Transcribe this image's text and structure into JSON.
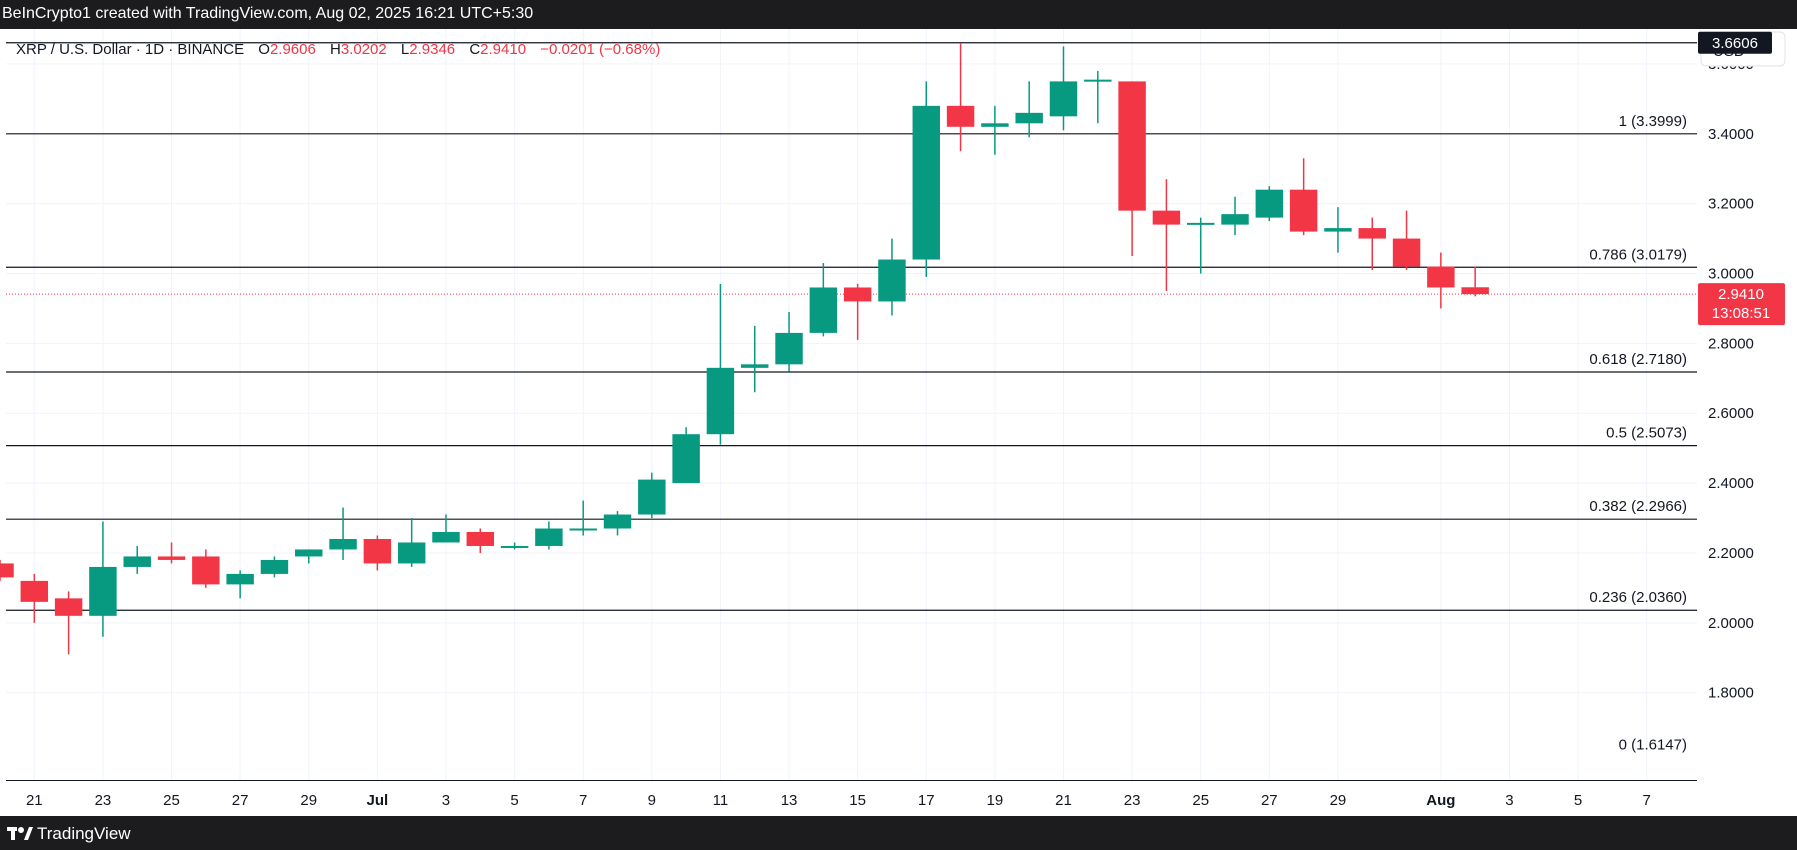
{
  "header": {
    "credit": "BeInCrypto1 created with TradingView.com, Aug 02, 2025 16:21 UTC+5:30"
  },
  "symbol": {
    "name": "XRP / U.S. Dollar · 1D · BINANCE",
    "open_label": "O",
    "open": "2.9606",
    "high_label": "H",
    "high": "3.0202",
    "low_label": "L",
    "low": "2.9346",
    "close_label": "C",
    "close": "2.9410",
    "change": "−0.0201 (−0.68%)"
  },
  "currency_button": "USD",
  "price_tag": {
    "price": "2.9410",
    "countdown": "13:08:51"
  },
  "high_tag": "3.6606",
  "footer": {
    "brand": "TradingView"
  },
  "colors": {
    "up": "#089981",
    "down": "#f23645",
    "text": "#131722",
    "grid": "#f0f3fa",
    "level_line": "#131722"
  },
  "chart_data": {
    "type": "candlestick",
    "ylim": [
      1.55,
      3.7
    ],
    "yticks": [
      "1.8000",
      "2.0000",
      "2.2000",
      "2.4000",
      "2.6000",
      "2.8000",
      "3.0000",
      "3.2000",
      "3.4000",
      "3.6000"
    ],
    "x_dates": [
      "2025-06-20",
      "2025-08-08"
    ],
    "xticks": [
      {
        "date": "2025-06-21",
        "label": "21"
      },
      {
        "date": "2025-06-23",
        "label": "23"
      },
      {
        "date": "2025-06-25",
        "label": "25"
      },
      {
        "date": "2025-06-27",
        "label": "27"
      },
      {
        "date": "2025-06-29",
        "label": "29"
      },
      {
        "date": "2025-07-01",
        "label": "Jul"
      },
      {
        "date": "2025-07-03",
        "label": "3"
      },
      {
        "date": "2025-07-05",
        "label": "5"
      },
      {
        "date": "2025-07-07",
        "label": "7"
      },
      {
        "date": "2025-07-09",
        "label": "9"
      },
      {
        "date": "2025-07-11",
        "label": "11"
      },
      {
        "date": "2025-07-13",
        "label": "13"
      },
      {
        "date": "2025-07-15",
        "label": "15"
      },
      {
        "date": "2025-07-17",
        "label": "17"
      },
      {
        "date": "2025-07-19",
        "label": "19"
      },
      {
        "date": "2025-07-21",
        "label": "21"
      },
      {
        "date": "2025-07-23",
        "label": "23"
      },
      {
        "date": "2025-07-25",
        "label": "25"
      },
      {
        "date": "2025-07-27",
        "label": "27"
      },
      {
        "date": "2025-07-29",
        "label": "29"
      },
      {
        "date": "2025-08-01",
        "label": "Aug"
      },
      {
        "date": "2025-08-03",
        "label": "3"
      },
      {
        "date": "2025-08-05",
        "label": "5"
      },
      {
        "date": "2025-08-07",
        "label": "7"
      }
    ],
    "fib_levels": [
      {
        "label": "1 (3.3999)",
        "value": 3.3999
      },
      {
        "label": "0.786 (3.0179)",
        "value": 3.0179
      },
      {
        "label": "0.618 (2.7180)",
        "value": 2.718
      },
      {
        "label": "0.5 (2.5073)",
        "value": 2.5073
      },
      {
        "label": "0.382 (2.2966)",
        "value": 2.2966
      },
      {
        "label": "0.236 (2.0360)",
        "value": 2.036
      },
      {
        "label": "0 (1.6147)",
        "value": 1.6147
      }
    ],
    "top_line": 3.6606,
    "last_price": 2.941,
    "candles": [
      {
        "date": "2025-06-20",
        "o": 2.17,
        "h": 2.18,
        "l": 2.12,
        "c": 2.13
      },
      {
        "date": "2025-06-21",
        "o": 2.12,
        "h": 2.14,
        "l": 2.0,
        "c": 2.06
      },
      {
        "date": "2025-06-22",
        "o": 2.07,
        "h": 2.09,
        "l": 1.91,
        "c": 2.02
      },
      {
        "date": "2025-06-23",
        "o": 2.02,
        "h": 2.29,
        "l": 1.96,
        "c": 2.16
      },
      {
        "date": "2025-06-24",
        "o": 2.16,
        "h": 2.22,
        "l": 2.14,
        "c": 2.19
      },
      {
        "date": "2025-06-25",
        "o": 2.19,
        "h": 2.23,
        "l": 2.17,
        "c": 2.18
      },
      {
        "date": "2025-06-26",
        "o": 2.19,
        "h": 2.21,
        "l": 2.1,
        "c": 2.11
      },
      {
        "date": "2025-06-27",
        "o": 2.11,
        "h": 2.15,
        "l": 2.07,
        "c": 2.14
      },
      {
        "date": "2025-06-28",
        "o": 2.14,
        "h": 2.19,
        "l": 2.13,
        "c": 2.18
      },
      {
        "date": "2025-06-29",
        "o": 2.19,
        "h": 2.21,
        "l": 2.17,
        "c": 2.21
      },
      {
        "date": "2025-06-30",
        "o": 2.21,
        "h": 2.33,
        "l": 2.18,
        "c": 2.24
      },
      {
        "date": "2025-07-01",
        "o": 2.24,
        "h": 2.25,
        "l": 2.15,
        "c": 2.17
      },
      {
        "date": "2025-07-02",
        "o": 2.17,
        "h": 2.3,
        "l": 2.16,
        "c": 2.23
      },
      {
        "date": "2025-07-03",
        "o": 2.23,
        "h": 2.31,
        "l": 2.23,
        "c": 2.26
      },
      {
        "date": "2025-07-04",
        "o": 2.26,
        "h": 2.27,
        "l": 2.2,
        "c": 2.22
      },
      {
        "date": "2025-07-05",
        "o": 2.22,
        "h": 2.23,
        "l": 2.21,
        "c": 2.22
      },
      {
        "date": "2025-07-06",
        "o": 2.22,
        "h": 2.29,
        "l": 2.21,
        "c": 2.27
      },
      {
        "date": "2025-07-07",
        "o": 2.27,
        "h": 2.35,
        "l": 2.25,
        "c": 2.27
      },
      {
        "date": "2025-07-08",
        "o": 2.27,
        "h": 2.32,
        "l": 2.25,
        "c": 2.31
      },
      {
        "date": "2025-07-09",
        "o": 2.31,
        "h": 2.43,
        "l": 2.3,
        "c": 2.41
      },
      {
        "date": "2025-07-10",
        "o": 2.4,
        "h": 2.56,
        "l": 2.4,
        "c": 2.54
      },
      {
        "date": "2025-07-11",
        "o": 2.54,
        "h": 2.97,
        "l": 2.51,
        "c": 2.73
      },
      {
        "date": "2025-07-12",
        "o": 2.73,
        "h": 2.85,
        "l": 2.66,
        "c": 2.74
      },
      {
        "date": "2025-07-13",
        "o": 2.74,
        "h": 2.89,
        "l": 2.72,
        "c": 2.83
      },
      {
        "date": "2025-07-14",
        "o": 2.83,
        "h": 3.03,
        "l": 2.82,
        "c": 2.96
      },
      {
        "date": "2025-07-15",
        "o": 2.96,
        "h": 2.97,
        "l": 2.81,
        "c": 2.92
      },
      {
        "date": "2025-07-16",
        "o": 2.92,
        "h": 3.1,
        "l": 2.88,
        "c": 3.04
      },
      {
        "date": "2025-07-17",
        "o": 3.04,
        "h": 3.55,
        "l": 2.99,
        "c": 3.48
      },
      {
        "date": "2025-07-18",
        "o": 3.48,
        "h": 3.66,
        "l": 3.35,
        "c": 3.42
      },
      {
        "date": "2025-07-19",
        "o": 3.42,
        "h": 3.48,
        "l": 3.34,
        "c": 3.43
      },
      {
        "date": "2025-07-20",
        "o": 3.43,
        "h": 3.55,
        "l": 3.39,
        "c": 3.46
      },
      {
        "date": "2025-07-21",
        "o": 3.45,
        "h": 3.65,
        "l": 3.41,
        "c": 3.55
      },
      {
        "date": "2025-07-22",
        "o": 3.55,
        "h": 3.58,
        "l": 3.43,
        "c": 3.555
      },
      {
        "date": "2025-07-23",
        "o": 3.55,
        "h": 3.55,
        "l": 3.05,
        "c": 3.18
      },
      {
        "date": "2025-07-24",
        "o": 3.18,
        "h": 3.27,
        "l": 2.95,
        "c": 3.14
      },
      {
        "date": "2025-07-25",
        "o": 3.14,
        "h": 3.16,
        "l": 3.0,
        "c": 3.145
      },
      {
        "date": "2025-07-26",
        "o": 3.14,
        "h": 3.22,
        "l": 3.11,
        "c": 3.17
      },
      {
        "date": "2025-07-27",
        "o": 3.16,
        "h": 3.25,
        "l": 3.15,
        "c": 3.24
      },
      {
        "date": "2025-07-28",
        "o": 3.24,
        "h": 3.33,
        "l": 3.11,
        "c": 3.12
      },
      {
        "date": "2025-07-29",
        "o": 3.12,
        "h": 3.19,
        "l": 3.06,
        "c": 3.13
      },
      {
        "date": "2025-07-30",
        "o": 3.13,
        "h": 3.16,
        "l": 3.01,
        "c": 3.1
      },
      {
        "date": "2025-07-31",
        "o": 3.1,
        "h": 3.18,
        "l": 3.01,
        "c": 3.02
      },
      {
        "date": "2025-08-01",
        "o": 3.02,
        "h": 3.06,
        "l": 2.9,
        "c": 2.96
      },
      {
        "date": "2025-08-02",
        "o": 2.9606,
        "h": 3.0202,
        "l": 2.9346,
        "c": 2.941
      }
    ]
  }
}
